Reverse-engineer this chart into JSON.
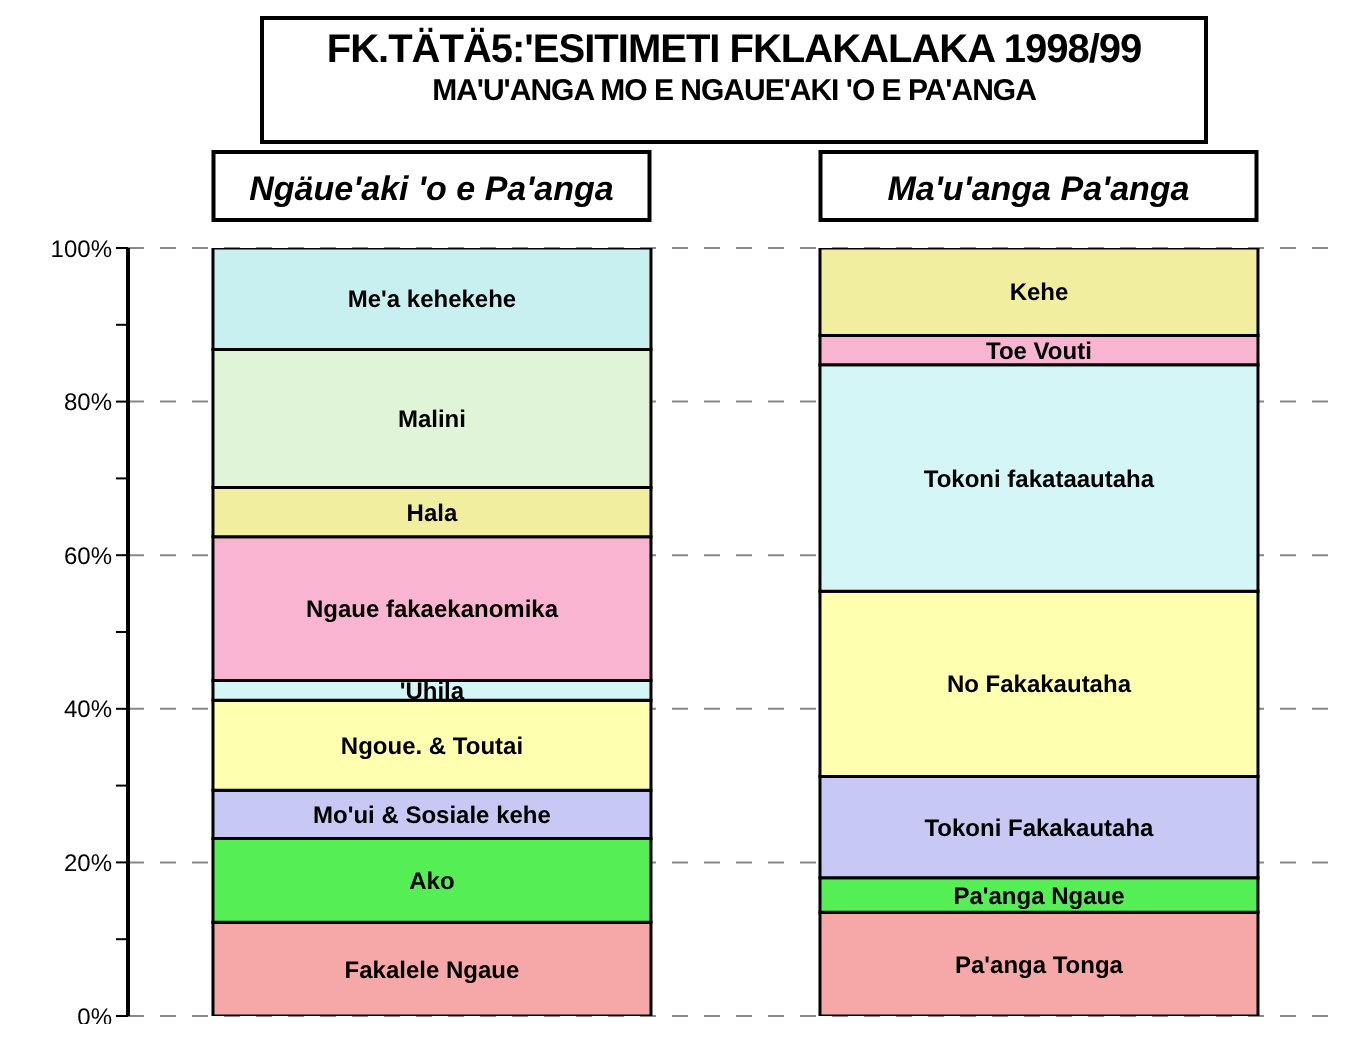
{
  "chart_data": {
    "type": "bar",
    "stacked": true,
    "title": "FK.TÄTÄ5:'ESITIMETI FKLAKALAKA 1998/99",
    "subtitle": "MA'U'ANGA MO E NGAUE'AKI 'O E PA'ANGA",
    "categories": [
      "Ngäue'aki 'o e Pa'anga",
      "Ma'u'anga Pa'anga"
    ],
    "series": [
      {
        "color": "#f6a8a8",
        "values": [
          12.2,
          13.5
        ],
        "value_labels": [
          "Fakalele Ngaue",
          "Pa'anga Tonga"
        ]
      },
      {
        "color": "#55ee55",
        "values": [
          10.9,
          4.5
        ],
        "value_labels": [
          "Ako",
          "Pa'anga Ngaue"
        ]
      },
      {
        "color": "#c8c8f4",
        "values": [
          6.3,
          13.2
        ],
        "value_labels": [
          "Mo'ui & Sosiale kehe",
          "Tokoni Fakakautaha"
        ]
      },
      {
        "color": "#ffffb0",
        "values": [
          11.7,
          24.1
        ],
        "value_labels": [
          "Ngoue. & Toutai",
          "No Fakakautaha"
        ]
      },
      {
        "color": "#d4f6f6",
        "values": [
          2.6,
          29.5
        ],
        "value_labels": [
          "'Uhila",
          "Tokoni fakataautaha"
        ]
      },
      {
        "color": "#f8b4d0",
        "values": [
          18.7,
          3.8
        ],
        "value_labels": [
          "Ngaue fakaekanomika",
          "Toe Vouti"
        ]
      },
      {
        "color": "#f2eea0",
        "values": [
          6.4,
          11.4
        ],
        "value_labels": [
          "Hala",
          "Kehe"
        ]
      },
      {
        "color": "#e0f4d8",
        "values": [
          18.0,
          null
        ],
        "value_labels": [
          "Malini",
          null
        ]
      },
      {
        "color": "#c8f0f0",
        "values": [
          13.2,
          null
        ],
        "value_labels": [
          "Me'a kehekehe",
          null
        ]
      }
    ],
    "ylim": [
      0,
      100
    ],
    "yticks": [
      {
        "value": 0,
        "label": "0%"
      },
      {
        "value": 10,
        "label": null
      },
      {
        "value": 20,
        "label": "20%"
      },
      {
        "value": 30,
        "label": null
      },
      {
        "value": 40,
        "label": "40%"
      },
      {
        "value": 50,
        "label": null
      },
      {
        "value": 60,
        "label": "60%"
      },
      {
        "value": 70,
        "label": null
      },
      {
        "value": 80,
        "label": "80%"
      },
      {
        "value": 90,
        "label": null
      },
      {
        "value": 100,
        "label": "100%"
      }
    ],
    "grid": "y"
  }
}
